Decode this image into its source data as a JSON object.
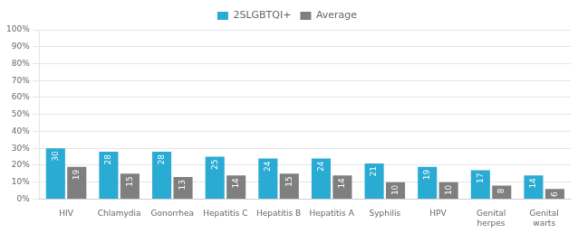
{
  "chart_data": {
    "type": "bar",
    "categories": [
      "HIV",
      "Chlamydia",
      "Gonorrhea",
      "Hepatitis C",
      "Hepatitis B",
      "Hepatitis A",
      "Syphilis",
      "HPV",
      "Genital\nherpes",
      "Genital\nwarts"
    ],
    "series": [
      {
        "name": "2SLGBTQI+",
        "color": "#29ABD4",
        "values": [
          30,
          28,
          28,
          25,
          24,
          24,
          21,
          19,
          17,
          14
        ]
      },
      {
        "name": "Average",
        "color": "#7F7F7F",
        "values": [
          19,
          15,
          13,
          14,
          15,
          14,
          10,
          10,
          8,
          6
        ]
      }
    ],
    "ylim": [
      0,
      100
    ],
    "yticks": [
      {
        "value": 0,
        "label": "0%"
      },
      {
        "value": 10,
        "label": "10%"
      },
      {
        "value": 20,
        "label": "20%"
      },
      {
        "value": 30,
        "label": "30%"
      },
      {
        "value": 40,
        "label": "40%"
      },
      {
        "value": 50,
        "label": "50%"
      },
      {
        "value": 60,
        "label": "60%"
      },
      {
        "value": 70,
        "label": "70%"
      },
      {
        "value": 80,
        "label": "80%"
      },
      {
        "value": 90,
        "label": "90%"
      },
      {
        "value": 100,
        "label": "100%"
      }
    ],
    "grid": true,
    "legend": "top",
    "data_labels": true
  }
}
